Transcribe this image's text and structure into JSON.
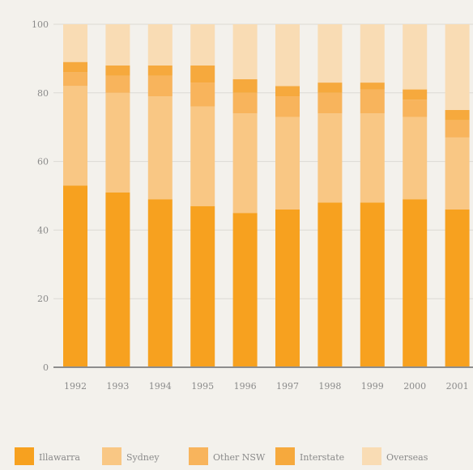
{
  "chart_data": {
    "type": "bar",
    "stacked": true,
    "categories": [
      "1992",
      "1993",
      "1994",
      "1995",
      "1996",
      "1997",
      "1998",
      "1999",
      "2000",
      "2001"
    ],
    "series": [
      {
        "name": "Illawarra",
        "color": "#f7a11f",
        "values": [
          53,
          51,
          49,
          47,
          45,
          46,
          48,
          48,
          49,
          46
        ]
      },
      {
        "name": "Sydney",
        "color": "#f9c784",
        "values": [
          29,
          29,
          30,
          29,
          29,
          27,
          26,
          26,
          24,
          21
        ]
      },
      {
        "name": "Other NSW",
        "color": "#f8b45c",
        "values": [
          4,
          5,
          6,
          7,
          6,
          6,
          6,
          7,
          5,
          5
        ]
      },
      {
        "name": "Interstate",
        "color": "#f6a93d",
        "values": [
          3,
          3,
          3,
          5,
          4,
          3,
          3,
          2,
          3,
          3
        ]
      },
      {
        "name": "Overseas",
        "color": "#f9dcb4",
        "values": [
          11,
          12,
          12,
          12,
          16,
          18,
          17,
          17,
          19,
          25
        ]
      }
    ],
    "ylim": [
      0,
      100
    ],
    "yticks": [
      "0",
      "20",
      "40",
      "60",
      "80",
      "100"
    ],
    "grid": true,
    "legend_position": "bottom"
  }
}
